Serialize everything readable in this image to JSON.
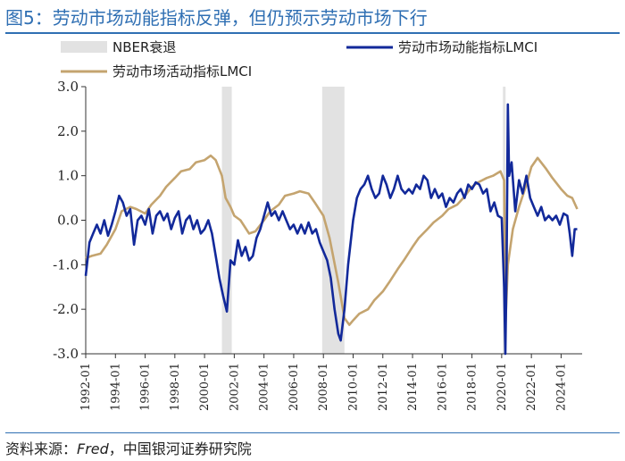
{
  "title": "图5：劳动市场动能指标反弹，但仍预示劳动市场下行",
  "source": {
    "prefix": "资料来源：",
    "fred": "Fred",
    "suffix": "，中国银河证券研究院"
  },
  "colors": {
    "momentum": "#12299a",
    "activity": "#c4a46f",
    "recession": "#e2e2e2",
    "title": "#2f6fb3"
  },
  "chart_data": {
    "type": "line",
    "x_range": [
      "1992-01",
      "2025-06"
    ],
    "ylim": [
      -3.0,
      3.0
    ],
    "y_ticks": [
      "3.0",
      "2.0",
      "1.0",
      "0.0",
      "-1.0",
      "-2.0",
      "-3.0"
    ],
    "x_ticks": [
      "1992-01",
      "1994-01",
      "1996-01",
      "1998-01",
      "2000-01",
      "2002-01",
      "2004-01",
      "2006-01",
      "2008-01",
      "2010-01",
      "2012-01",
      "2014-01",
      "2016-01",
      "2018-01",
      "2020-01",
      "2022-01",
      "2024-01"
    ],
    "legend": {
      "recession": "NBER衰退",
      "momentum": "劳动市场动能指标LMCI",
      "activity": "劳动市场活动指标LMCI"
    },
    "recessions": [
      {
        "start": "2001-03",
        "end": "2001-11"
      },
      {
        "start": "2007-12",
        "end": "2009-06"
      },
      {
        "start": "2020-02",
        "end": "2020-04"
      }
    ],
    "series": [
      {
        "name": "劳动市场动能指标LMCI",
        "points": [
          [
            "1992-01",
            -1.25
          ],
          [
            "1992-04",
            -0.5
          ],
          [
            "1992-07",
            -0.3
          ],
          [
            "1992-10",
            -0.1
          ],
          [
            "1993-01",
            -0.3
          ],
          [
            "1993-04",
            0.0
          ],
          [
            "1993-07",
            -0.35
          ],
          [
            "1993-10",
            -0.1
          ],
          [
            "1994-01",
            0.2
          ],
          [
            "1994-04",
            0.55
          ],
          [
            "1994-07",
            0.4
          ],
          [
            "1994-10",
            0.1
          ],
          [
            "1995-01",
            0.25
          ],
          [
            "1995-04",
            -0.55
          ],
          [
            "1995-07",
            0.0
          ],
          [
            "1995-10",
            0.1
          ],
          [
            "1996-01",
            -0.1
          ],
          [
            "1996-04",
            0.25
          ],
          [
            "1996-07",
            -0.3
          ],
          [
            "1996-10",
            0.1
          ],
          [
            "1997-01",
            0.2
          ],
          [
            "1997-04",
            0.0
          ],
          [
            "1997-07",
            0.15
          ],
          [
            "1997-10",
            -0.2
          ],
          [
            "1998-01",
            0.05
          ],
          [
            "1998-04",
            0.2
          ],
          [
            "1998-07",
            -0.3
          ],
          [
            "1998-10",
            0.0
          ],
          [
            "1999-01",
            0.1
          ],
          [
            "1999-04",
            -0.2
          ],
          [
            "1999-07",
            0.0
          ],
          [
            "1999-10",
            -0.3
          ],
          [
            "2000-01",
            -0.2
          ],
          [
            "2000-04",
            0.0
          ],
          [
            "2000-07",
            -0.3
          ],
          [
            "2000-10",
            -0.8
          ],
          [
            "2001-01",
            -1.3
          ],
          [
            "2001-04",
            -1.7
          ],
          [
            "2001-07",
            -2.05
          ],
          [
            "2001-10",
            -0.9
          ],
          [
            "2002-01",
            -1.0
          ],
          [
            "2002-04",
            -0.45
          ],
          [
            "2002-07",
            -0.8
          ],
          [
            "2002-10",
            -0.6
          ],
          [
            "2003-01",
            -0.9
          ],
          [
            "2003-04",
            -0.8
          ],
          [
            "2003-07",
            -0.4
          ],
          [
            "2003-10",
            -0.2
          ],
          [
            "2004-01",
            0.1
          ],
          [
            "2004-04",
            0.4
          ],
          [
            "2004-07",
            0.1
          ],
          [
            "2004-10",
            0.2
          ],
          [
            "2005-01",
            0.0
          ],
          [
            "2005-04",
            0.2
          ],
          [
            "2005-07",
            0.0
          ],
          [
            "2005-10",
            -0.2
          ],
          [
            "2006-01",
            -0.1
          ],
          [
            "2006-04",
            -0.3
          ],
          [
            "2006-07",
            -0.1
          ],
          [
            "2006-10",
            -0.3
          ],
          [
            "2007-01",
            -0.05
          ],
          [
            "2007-04",
            -0.3
          ],
          [
            "2007-07",
            -0.2
          ],
          [
            "2007-10",
            -0.5
          ],
          [
            "2008-01",
            -0.7
          ],
          [
            "2008-04",
            -0.9
          ],
          [
            "2008-07",
            -1.3
          ],
          [
            "2008-10",
            -2.0
          ],
          [
            "2009-01",
            -2.55
          ],
          [
            "2009-03",
            -2.7
          ],
          [
            "2009-06",
            -2.0
          ],
          [
            "2009-09",
            -1.0
          ],
          [
            "2010-01",
            0.0
          ],
          [
            "2010-04",
            0.5
          ],
          [
            "2010-07",
            0.7
          ],
          [
            "2010-10",
            0.8
          ],
          [
            "2011-01",
            1.0
          ],
          [
            "2011-04",
            0.7
          ],
          [
            "2011-07",
            0.5
          ],
          [
            "2011-10",
            0.6
          ],
          [
            "2012-01",
            1.0
          ],
          [
            "2012-04",
            0.8
          ],
          [
            "2012-07",
            0.5
          ],
          [
            "2012-10",
            0.7
          ],
          [
            "2013-01",
            1.0
          ],
          [
            "2013-04",
            0.7
          ],
          [
            "2013-07",
            0.6
          ],
          [
            "2013-10",
            0.7
          ],
          [
            "2014-01",
            0.6
          ],
          [
            "2014-04",
            0.8
          ],
          [
            "2014-07",
            0.7
          ],
          [
            "2014-10",
            1.0
          ],
          [
            "2015-01",
            0.9
          ],
          [
            "2015-04",
            0.5
          ],
          [
            "2015-07",
            0.7
          ],
          [
            "2015-10",
            0.5
          ],
          [
            "2016-01",
            0.6
          ],
          [
            "2016-04",
            0.3
          ],
          [
            "2016-07",
            0.5
          ],
          [
            "2016-10",
            0.4
          ],
          [
            "2017-01",
            0.6
          ],
          [
            "2017-04",
            0.7
          ],
          [
            "2017-07",
            0.5
          ],
          [
            "2017-10",
            0.8
          ],
          [
            "2018-01",
            0.7
          ],
          [
            "2018-04",
            0.85
          ],
          [
            "2018-07",
            0.8
          ],
          [
            "2018-10",
            0.6
          ],
          [
            "2019-01",
            0.7
          ],
          [
            "2019-04",
            0.2
          ],
          [
            "2019-07",
            0.4
          ],
          [
            "2019-10",
            0.1
          ],
          [
            "2020-01",
            0.05
          ],
          [
            "2020-03",
            -1.5
          ],
          [
            "2020-04",
            -3.0
          ],
          [
            "2020-05",
            -1.0
          ],
          [
            "2020-06",
            2.6
          ],
          [
            "2020-07",
            1.0
          ],
          [
            "2020-09",
            1.3
          ],
          [
            "2020-12",
            0.2
          ],
          [
            "2021-03",
            0.9
          ],
          [
            "2021-06",
            0.6
          ],
          [
            "2021-09",
            1.0
          ],
          [
            "2021-12",
            0.5
          ],
          [
            "2022-03",
            0.3
          ],
          [
            "2022-06",
            0.1
          ],
          [
            "2022-09",
            0.3
          ],
          [
            "2022-12",
            0.0
          ],
          [
            "2023-03",
            0.1
          ],
          [
            "2023-06",
            0.0
          ],
          [
            "2023-09",
            0.1
          ],
          [
            "2023-12",
            -0.1
          ],
          [
            "2024-03",
            0.15
          ],
          [
            "2024-06",
            0.1
          ],
          [
            "2024-08",
            -0.3
          ],
          [
            "2024-10",
            -0.8
          ],
          [
            "2024-12",
            -0.2
          ],
          [
            "2025-02",
            -0.2
          ]
        ]
      },
      {
        "name": "劳动市场活动指标LMCI",
        "points": [
          [
            "1992-01",
            -0.85
          ],
          [
            "1992-06",
            -0.8
          ],
          [
            "1993-01",
            -0.75
          ],
          [
            "1993-06",
            -0.55
          ],
          [
            "1994-01",
            -0.2
          ],
          [
            "1994-06",
            0.2
          ],
          [
            "1995-01",
            0.3
          ],
          [
            "1995-06",
            0.25
          ],
          [
            "1996-01",
            0.15
          ],
          [
            "1996-06",
            0.35
          ],
          [
            "1997-01",
            0.55
          ],
          [
            "1997-06",
            0.75
          ],
          [
            "1998-01",
            0.95
          ],
          [
            "1998-06",
            1.1
          ],
          [
            "1999-01",
            1.15
          ],
          [
            "1999-06",
            1.3
          ],
          [
            "2000-01",
            1.35
          ],
          [
            "2000-06",
            1.45
          ],
          [
            "2000-10",
            1.35
          ],
          [
            "2001-03",
            1.0
          ],
          [
            "2001-06",
            0.5
          ],
          [
            "2001-10",
            0.3
          ],
          [
            "2002-01",
            0.1
          ],
          [
            "2002-06",
            0.0
          ],
          [
            "2003-01",
            -0.3
          ],
          [
            "2003-06",
            -0.25
          ],
          [
            "2004-01",
            0.0
          ],
          [
            "2004-06",
            0.2
          ],
          [
            "2005-01",
            0.35
          ],
          [
            "2005-06",
            0.55
          ],
          [
            "2006-01",
            0.6
          ],
          [
            "2006-06",
            0.65
          ],
          [
            "2007-01",
            0.6
          ],
          [
            "2007-06",
            0.4
          ],
          [
            "2008-01",
            0.1
          ],
          [
            "2008-06",
            -0.4
          ],
          [
            "2009-01",
            -1.4
          ],
          [
            "2009-06",
            -2.2
          ],
          [
            "2009-10",
            -2.35
          ],
          [
            "2010-01",
            -2.25
          ],
          [
            "2010-06",
            -2.1
          ],
          [
            "2011-01",
            -2.0
          ],
          [
            "2011-06",
            -1.8
          ],
          [
            "2012-01",
            -1.6
          ],
          [
            "2012-06",
            -1.4
          ],
          [
            "2013-01",
            -1.1
          ],
          [
            "2013-06",
            -0.9
          ],
          [
            "2014-01",
            -0.6
          ],
          [
            "2014-06",
            -0.4
          ],
          [
            "2015-01",
            -0.2
          ],
          [
            "2015-06",
            -0.05
          ],
          [
            "2016-01",
            0.1
          ],
          [
            "2016-06",
            0.25
          ],
          [
            "2017-01",
            0.35
          ],
          [
            "2017-06",
            0.5
          ],
          [
            "2018-01",
            0.75
          ],
          [
            "2018-06",
            0.85
          ],
          [
            "2019-01",
            0.95
          ],
          [
            "2019-06",
            1.0
          ],
          [
            "2019-12",
            1.1
          ],
          [
            "2020-03",
            0.9
          ],
          [
            "2020-04",
            -2.4
          ],
          [
            "2020-06",
            -1.0
          ],
          [
            "2020-10",
            -0.2
          ],
          [
            "2021-03",
            0.3
          ],
          [
            "2021-09",
            0.8
          ],
          [
            "2022-01",
            1.2
          ],
          [
            "2022-06",
            1.4
          ],
          [
            "2023-01",
            1.15
          ],
          [
            "2023-06",
            0.95
          ],
          [
            "2024-01",
            0.7
          ],
          [
            "2024-06",
            0.55
          ],
          [
            "2024-10",
            0.5
          ],
          [
            "2025-02",
            0.25
          ]
        ]
      }
    ]
  }
}
